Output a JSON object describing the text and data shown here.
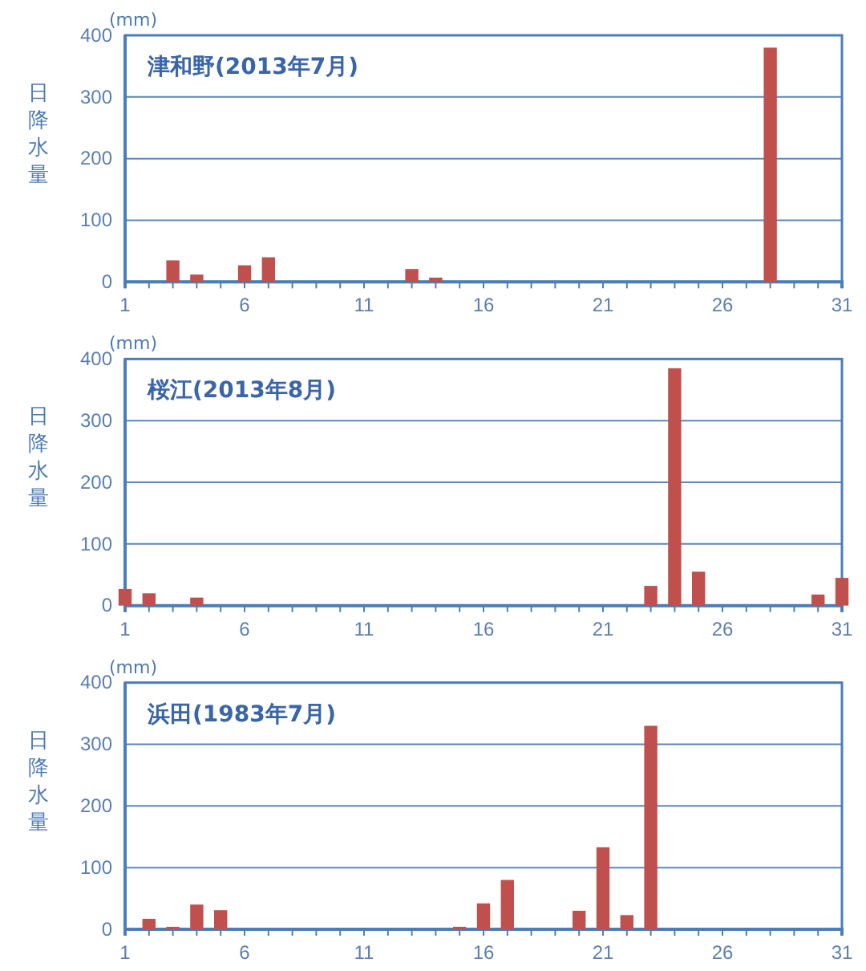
{
  "chart_data": [
    {
      "type": "bar",
      "title": "津和野(2013年7月)",
      "ylabel": "日降水量",
      "annotations": [
        "(mm)"
      ],
      "x": [
        3,
        4,
        6,
        7,
        13,
        14,
        28
      ],
      "values": [
        35,
        12,
        27,
        40,
        21,
        7,
        380
      ],
      "color": "#c0504d",
      "xlim": [
        1,
        31
      ],
      "xticks": [
        1,
        {
          "value": 2,
          "label": null
        },
        {
          "value": 3,
          "label": null
        },
        {
          "value": 4,
          "label": null
        },
        {
          "value": 5,
          "label": null
        },
        6,
        {
          "value": 7,
          "label": null
        },
        {
          "value": 8,
          "label": null
        },
        {
          "value": 9,
          "label": null
        },
        {
          "value": 10,
          "label": null
        },
        11,
        {
          "value": 12,
          "label": null
        },
        {
          "value": 13,
          "label": null
        },
        {
          "value": 14,
          "label": null
        },
        {
          "value": 15,
          "label": null
        },
        16,
        {
          "value": 17,
          "label": null
        },
        {
          "value": 18,
          "label": null
        },
        {
          "value": 19,
          "label": null
        },
        {
          "value": 20,
          "label": null
        },
        21,
        {
          "value": 22,
          "label": null
        },
        {
          "value": 23,
          "label": null
        },
        {
          "value": 24,
          "label": null
        },
        {
          "value": 25,
          "label": null
        },
        26,
        {
          "value": 27,
          "label": null
        },
        {
          "value": 28,
          "label": null
        },
        {
          "value": 29,
          "label": null
        },
        {
          "value": 30,
          "label": null
        },
        31
      ],
      "ylim": [
        0,
        400
      ],
      "yticks": [
        0,
        100,
        200,
        300,
        400
      ],
      "grid": "y"
    },
    {
      "type": "bar",
      "title": "桜江(2013年8月)",
      "ylabel": "日降水量",
      "annotations": [
        "(mm)"
      ],
      "x": [
        1,
        2,
        4,
        23,
        24,
        25,
        30,
        31
      ],
      "values": [
        27,
        20,
        13,
        32,
        385,
        55,
        18,
        45
      ],
      "color": "#c0504d",
      "xlim": [
        1,
        31
      ],
      "xticks": [
        1,
        {
          "value": 2,
          "label": null
        },
        {
          "value": 3,
          "label": null
        },
        {
          "value": 4,
          "label": null
        },
        {
          "value": 5,
          "label": null
        },
        6,
        {
          "value": 7,
          "label": null
        },
        {
          "value": 8,
          "label": null
        },
        {
          "value": 9,
          "label": null
        },
        {
          "value": 10,
          "label": null
        },
        11,
        {
          "value": 12,
          "label": null
        },
        {
          "value": 13,
          "label": null
        },
        {
          "value": 14,
          "label": null
        },
        {
          "value": 15,
          "label": null
        },
        16,
        {
          "value": 17,
          "label": null
        },
        {
          "value": 18,
          "label": null
        },
        {
          "value": 19,
          "label": null
        },
        {
          "value": 20,
          "label": null
        },
        21,
        {
          "value": 22,
          "label": null
        },
        {
          "value": 23,
          "label": null
        },
        {
          "value": 24,
          "label": null
        },
        {
          "value": 25,
          "label": null
        },
        26,
        {
          "value": 27,
          "label": null
        },
        {
          "value": 28,
          "label": null
        },
        {
          "value": 29,
          "label": null
        },
        {
          "value": 30,
          "label": null
        },
        31
      ],
      "ylim": [
        0,
        400
      ],
      "yticks": [
        0,
        100,
        200,
        300,
        400
      ],
      "grid": "y"
    },
    {
      "type": "bar",
      "title": "浜田(1983年7月)",
      "ylabel": "日降水量",
      "annotations": [
        "(mm)"
      ],
      "x": [
        2,
        3,
        4,
        5,
        15,
        16,
        17,
        20,
        21,
        22,
        23
      ],
      "values": [
        17,
        4,
        40,
        31,
        4,
        42,
        80,
        30,
        133,
        23,
        330
      ],
      "color": "#c0504d",
      "xlim": [
        1,
        31
      ],
      "xticks": [
        1,
        {
          "value": 2,
          "label": null
        },
        {
          "value": 3,
          "label": null
        },
        {
          "value": 4,
          "label": null
        },
        {
          "value": 5,
          "label": null
        },
        6,
        {
          "value": 7,
          "label": null
        },
        {
          "value": 8,
          "label": null
        },
        {
          "value": 9,
          "label": null
        },
        {
          "value": 10,
          "label": null
        },
        11,
        {
          "value": 12,
          "label": null
        },
        {
          "value": 13,
          "label": null
        },
        {
          "value": 14,
          "label": null
        },
        {
          "value": 15,
          "label": null
        },
        16,
        {
          "value": 17,
          "label": null
        },
        {
          "value": 18,
          "label": null
        },
        {
          "value": 19,
          "label": null
        },
        {
          "value": 20,
          "label": null
        },
        21,
        {
          "value": 22,
          "label": null
        },
        {
          "value": 23,
          "label": null
        },
        {
          "value": 24,
          "label": null
        },
        {
          "value": 25,
          "label": null
        },
        26,
        {
          "value": 27,
          "label": null
        },
        {
          "value": 28,
          "label": null
        },
        {
          "value": 29,
          "label": null
        },
        {
          "value": 30,
          "label": null
        },
        31
      ],
      "ylim": [
        0,
        400
      ],
      "yticks": [
        0,
        100,
        200,
        300,
        400
      ],
      "grid": "y"
    }
  ]
}
